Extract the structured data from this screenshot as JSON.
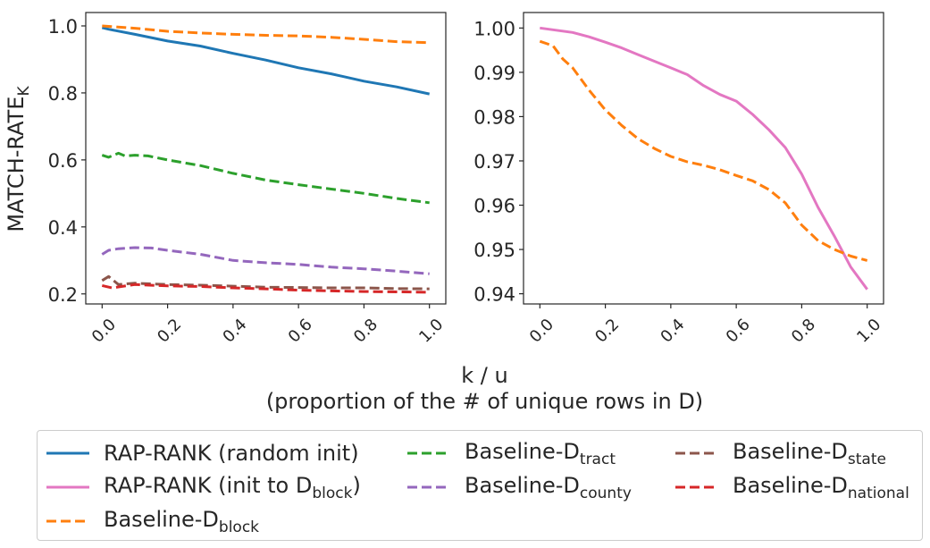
{
  "colors": {
    "rap_random": "#1f77b4",
    "rap_init": "#e377c2",
    "block": "#ff7f0e",
    "tract": "#2ca02c",
    "county": "#9467bd",
    "state": "#8c564b",
    "national": "#d62728"
  },
  "figure": {
    "xlabel_line1": "k / u",
    "xlabel_line2": "(proportion of the # of unique rows in D)",
    "ylabel_main": "MATCH-RATE",
    "ylabel_sub": "K"
  },
  "legend": [
    {
      "key": "rap_random",
      "text": "RAP-RANK (random init)",
      "sub": "",
      "style": "solid"
    },
    {
      "key": "rap_init",
      "text": "RAP-RANK (init to D",
      "sub": "block",
      "tail": ")",
      "style": "solid"
    },
    {
      "key": "block",
      "text": "Baseline-D",
      "sub": "block",
      "style": "dashed"
    },
    {
      "key": "tract",
      "text": "Baseline-D",
      "sub": "tract",
      "style": "dashed"
    },
    {
      "key": "county",
      "text": "Baseline-D",
      "sub": "county",
      "style": "dashed"
    },
    {
      "key": "state",
      "text": "Baseline-D",
      "sub": "state",
      "style": "dashed"
    },
    {
      "key": "national",
      "text": "Baseline-D",
      "sub": "national",
      "style": "dashed"
    }
  ],
  "chart_data": [
    {
      "type": "line",
      "xlim": [
        -0.05,
        1.05
      ],
      "ylim": [
        0.17,
        1.04
      ],
      "xticks": [
        "0.0",
        "0.2",
        "0.4",
        "0.6",
        "0.8",
        "1.0"
      ],
      "yticks": [
        "0.2",
        "0.4",
        "0.6",
        "0.8",
        "1.0"
      ],
      "ylabel": "MATCH-RATE_K",
      "grid": false,
      "series": [
        {
          "key": "rap_random",
          "style": "solid",
          "x": [
            0,
            0.02,
            0.1,
            0.2,
            0.3,
            0.4,
            0.5,
            0.6,
            0.7,
            0.8,
            0.9,
            1.0
          ],
          "y": [
            0.995,
            0.99,
            0.975,
            0.955,
            0.94,
            0.918,
            0.898,
            0.875,
            0.857,
            0.835,
            0.818,
            0.797
          ]
        },
        {
          "key": "block",
          "style": "dashed",
          "x": [
            0,
            0.1,
            0.2,
            0.3,
            0.4,
            0.5,
            0.6,
            0.7,
            0.8,
            0.9,
            1.0
          ],
          "y": [
            1.0,
            0.993,
            0.984,
            0.979,
            0.975,
            0.972,
            0.97,
            0.966,
            0.96,
            0.953,
            0.95
          ]
        },
        {
          "key": "tract",
          "style": "dashed",
          "x": [
            0,
            0.02,
            0.05,
            0.07,
            0.1,
            0.14,
            0.2,
            0.3,
            0.4,
            0.5,
            0.6,
            0.7,
            0.8,
            0.9,
            1.0
          ],
          "y": [
            0.614,
            0.608,
            0.62,
            0.612,
            0.614,
            0.612,
            0.6,
            0.583,
            0.56,
            0.54,
            0.526,
            0.513,
            0.5,
            0.485,
            0.472
          ]
        },
        {
          "key": "county",
          "style": "dashed",
          "x": [
            0,
            0.02,
            0.05,
            0.1,
            0.15,
            0.2,
            0.3,
            0.4,
            0.5,
            0.6,
            0.7,
            0.8,
            0.9,
            1.0
          ],
          "y": [
            0.318,
            0.33,
            0.335,
            0.338,
            0.337,
            0.33,
            0.318,
            0.3,
            0.293,
            0.288,
            0.28,
            0.275,
            0.268,
            0.26
          ]
        },
        {
          "key": "state",
          "style": "dashed",
          "x": [
            0,
            0.02,
            0.05,
            0.1,
            0.2,
            0.3,
            0.4,
            0.5,
            0.6,
            0.7,
            0.8,
            0.9,
            1.0
          ],
          "y": [
            0.24,
            0.252,
            0.228,
            0.232,
            0.228,
            0.226,
            0.223,
            0.22,
            0.219,
            0.218,
            0.218,
            0.216,
            0.215
          ]
        },
        {
          "key": "national",
          "style": "dashed",
          "x": [
            0,
            0.03,
            0.1,
            0.2,
            0.3,
            0.4,
            0.5,
            0.6,
            0.7,
            0.8,
            0.9,
            1.0
          ],
          "y": [
            0.225,
            0.218,
            0.228,
            0.224,
            0.222,
            0.218,
            0.215,
            0.211,
            0.209,
            0.207,
            0.206,
            0.205
          ]
        }
      ]
    },
    {
      "type": "line",
      "xlim": [
        -0.05,
        1.05
      ],
      "ylim": [
        0.9377,
        1.0035
      ],
      "xticks": [
        "0.0",
        "0.2",
        "0.4",
        "0.6",
        "0.8",
        "1.0"
      ],
      "yticks": [
        "0.94",
        "0.95",
        "0.96",
        "0.97",
        "0.98",
        "0.99",
        "1.00"
      ],
      "grid": false,
      "series": [
        {
          "key": "rap_init",
          "style": "solid",
          "x": [
            0,
            0.05,
            0.1,
            0.15,
            0.2,
            0.25,
            0.3,
            0.35,
            0.4,
            0.45,
            0.5,
            0.55,
            0.6,
            0.65,
            0.7,
            0.75,
            0.8,
            0.85,
            0.9,
            0.95,
            1.0
          ],
          "y": [
            1.0,
            0.9995,
            0.999,
            0.998,
            0.9968,
            0.9955,
            0.994,
            0.9925,
            0.991,
            0.9895,
            0.987,
            0.985,
            0.9835,
            0.9805,
            0.977,
            0.973,
            0.967,
            0.9595,
            0.953,
            0.946,
            0.941
          ]
        },
        {
          "key": "block",
          "style": "dashed",
          "x": [
            0,
            0.04,
            0.07,
            0.1,
            0.15,
            0.2,
            0.25,
            0.3,
            0.35,
            0.4,
            0.45,
            0.5,
            0.55,
            0.6,
            0.65,
            0.7,
            0.75,
            0.8,
            0.85,
            0.9,
            0.95,
            1.0
          ],
          "y": [
            0.997,
            0.996,
            0.993,
            0.991,
            0.986,
            0.9815,
            0.978,
            0.975,
            0.9728,
            0.971,
            0.9698,
            0.969,
            0.968,
            0.9667,
            0.9655,
            0.9635,
            0.9605,
            0.9555,
            0.952,
            0.95,
            0.9485,
            0.9475
          ]
        }
      ]
    }
  ]
}
